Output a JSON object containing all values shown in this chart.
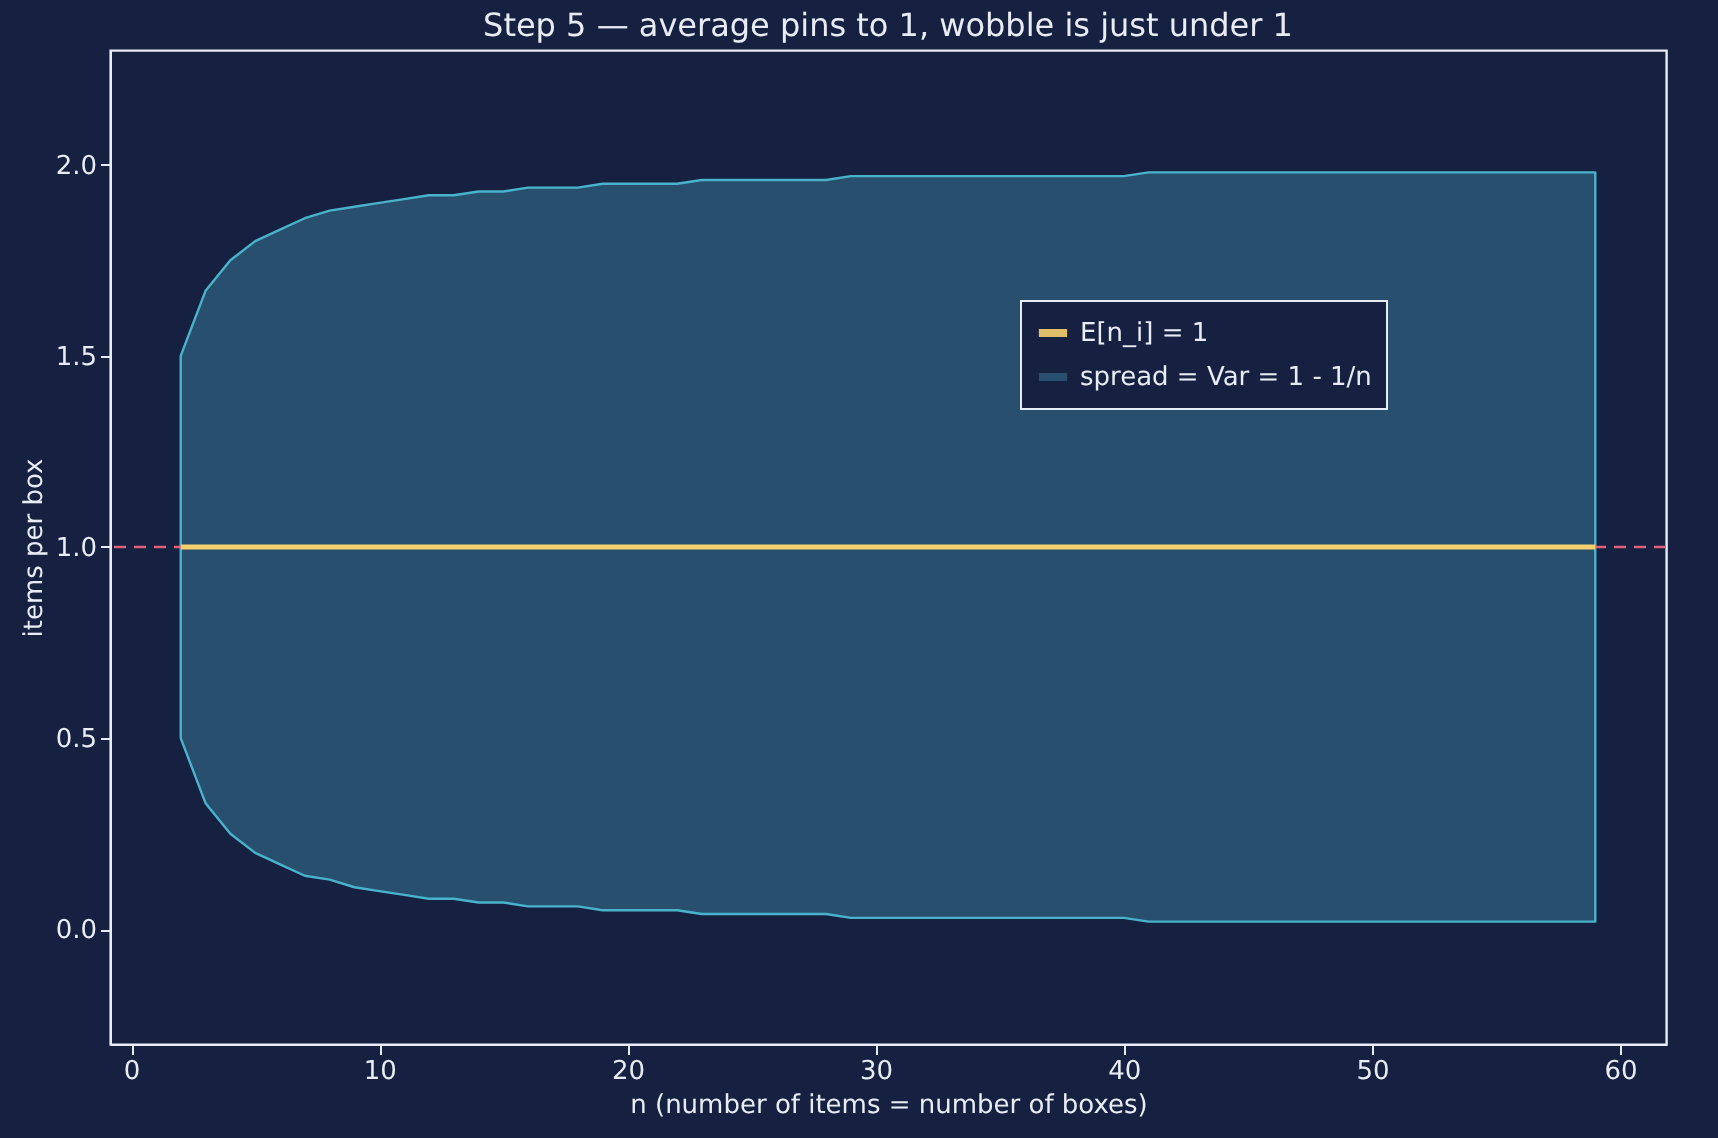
{
  "chart_data": {
    "type": "line",
    "title": "Step 5 — average pins to 1, wobble is just under 1",
    "xlabel": "n (number of items = number of boxes)",
    "ylabel": "items per box",
    "annotations": [
      "spread = Var = 1 - 1/n"
    ],
    "x": [
      2,
      3,
      4,
      5,
      6,
      7,
      8,
      9,
      10,
      11,
      12,
      13,
      14,
      15,
      16,
      17,
      18,
      19,
      20,
      21,
      22,
      23,
      24,
      25,
      26,
      27,
      28,
      29,
      30,
      31,
      32,
      33,
      34,
      35,
      36,
      37,
      38,
      39,
      40,
      41,
      42,
      43,
      44,
      45,
      46,
      47,
      48,
      49,
      50,
      51,
      52,
      53,
      54,
      55,
      56,
      57,
      58,
      59
    ],
    "series": [
      {
        "name": "E[n_i] = 1",
        "line_style": "solid",
        "color": "#f5d06f",
        "values": [
          1,
          1,
          1,
          1,
          1,
          1,
          1,
          1,
          1,
          1,
          1,
          1,
          1,
          1,
          1,
          1,
          1,
          1,
          1,
          1,
          1,
          1,
          1,
          1,
          1,
          1,
          1,
          1,
          1,
          1,
          1,
          1,
          1,
          1,
          1,
          1,
          1,
          1,
          1,
          1,
          1,
          1,
          1,
          1,
          1,
          1,
          1,
          1,
          1,
          1,
          1,
          1,
          1,
          1,
          1,
          1,
          1,
          1
        ],
        "lower": [
          0.5,
          0.33,
          0.25,
          0.2,
          0.17,
          0.14,
          0.13,
          0.11,
          0.1,
          0.09,
          0.08,
          0.08,
          0.07,
          0.07,
          0.06,
          0.06,
          0.06,
          0.05,
          0.05,
          0.05,
          0.05,
          0.04,
          0.04,
          0.04,
          0.04,
          0.04,
          0.04,
          0.03,
          0.03,
          0.03,
          0.03,
          0.03,
          0.03,
          0.03,
          0.03,
          0.03,
          0.03,
          0.03,
          0.03,
          0.02,
          0.02,
          0.02,
          0.02,
          0.02,
          0.02,
          0.02,
          0.02,
          0.02,
          0.02,
          0.02,
          0.02,
          0.02,
          0.02,
          0.02,
          0.02,
          0.02,
          0.02,
          0.02
        ],
        "upper": [
          1.5,
          1.67,
          1.75,
          1.8,
          1.83,
          1.86,
          1.88,
          1.89,
          1.9,
          1.91,
          1.92,
          1.92,
          1.93,
          1.93,
          1.94,
          1.94,
          1.94,
          1.95,
          1.95,
          1.95,
          1.95,
          1.96,
          1.96,
          1.96,
          1.96,
          1.96,
          1.96,
          1.97,
          1.97,
          1.97,
          1.97,
          1.97,
          1.97,
          1.97,
          1.97,
          1.97,
          1.97,
          1.97,
          1.97,
          1.98,
          1.98,
          1.98,
          1.98,
          1.98,
          1.98,
          1.98,
          1.98,
          1.98,
          1.98,
          1.98,
          1.98,
          1.98,
          1.98,
          1.98,
          1.98,
          1.98,
          1.98,
          1.98
        ]
      }
    ],
    "xlim": [
      -0.85,
      61.85
    ],
    "xticks": [
      0,
      10,
      20,
      30,
      40,
      50,
      60
    ],
    "ylim": [
      -0.3,
      2.3
    ],
    "yticks": [
      {
        "value": 0,
        "label": "0.0"
      },
      {
        "value": 0.5,
        "label": "0.5"
      },
      {
        "value": 1,
        "label": "1.0"
      },
      {
        "value": 1.5,
        "label": "1.5"
      },
      {
        "value": 2,
        "label": "2.0"
      }
    ],
    "ref_lines": [
      {
        "axis": "y",
        "value": 1,
        "color": "#e0607e",
        "line_style": "dashed"
      }
    ],
    "grid": false,
    "legend": "right"
  }
}
